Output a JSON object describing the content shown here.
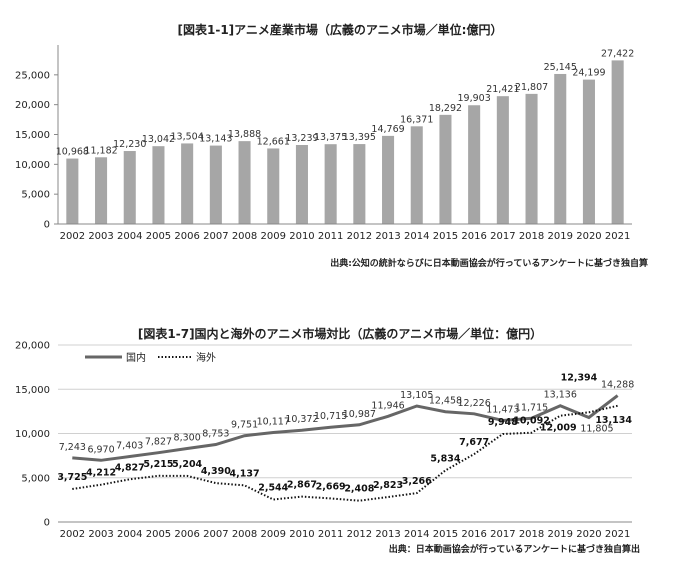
{
  "chart_data": [
    {
      "type": "bar",
      "title": "[図表1-1]アニメ産業市場（広義のアニメ市場／単位:億円）",
      "source": "出典:公知の統計ならびに日本動画協会が行っているアンケートに基づき独自算",
      "categories": [
        "2002",
        "2003",
        "2004",
        "2005",
        "2006",
        "2007",
        "2008",
        "2009",
        "2010",
        "2011",
        "2012",
        "2013",
        "2014",
        "2015",
        "2016",
        "2017",
        "2018",
        "2019",
        "2020",
        "2021"
      ],
      "values": [
        10968,
        11182,
        12230,
        13042,
        13504,
        13143,
        13888,
        12661,
        13239,
        13375,
        13395,
        14769,
        16371,
        18292,
        19903,
        21421,
        21807,
        25145,
        24199,
        27422
      ],
      "labels": [
        "10,968",
        "11,182",
        "12,230",
        "13,042",
        "13,504",
        "13,143",
        "13,888",
        "12,661",
        "13,239",
        "13,375",
        "13,395",
        "14,769",
        "16,371",
        "18,292",
        "19,903",
        "21,421",
        "21,807",
        "25,145",
        "24,199",
        "27,422"
      ],
      "ylim": [
        0,
        30000
      ],
      "yticks": [
        "0",
        "5,000",
        "10,000",
        "15,000",
        "20,000",
        "25,000"
      ],
      "ytick_values": [
        0,
        5000,
        10000,
        15000,
        20000,
        25000
      ],
      "bar_color": "#a6a6a6",
      "xlabel": "",
      "ylabel": "",
      "grid": false
    },
    {
      "type": "line",
      "title": "[図表1-7]国内と海外のアニメ市場対比（広義のアニメ市場／単位：億円）",
      "source": "出典：日本動画協会が行っているアンケートに基づき独自算出",
      "categories": [
        "2002",
        "2003",
        "2004",
        "2005",
        "2006",
        "2007",
        "2008",
        "2009",
        "2010",
        "2011",
        "2012",
        "2013",
        "2014",
        "2015",
        "2016",
        "2017",
        "2018",
        "2019",
        "2020",
        "2021"
      ],
      "series": [
        {
          "name": "国内",
          "values": [
            7243,
            6970,
            7403,
            7827,
            8300,
            8753,
            9751,
            10117,
            10372,
            10715,
            10987,
            11946,
            13105,
            12458,
            12226,
            11473,
            11715,
            13136,
            11805,
            14288
          ],
          "labels": [
            "7,243",
            "6,970",
            "7,403",
            "7,827",
            "8,300",
            "8,753",
            "9,751",
            "10,117",
            "10,372",
            "10,715",
            "10,987",
            "11,946",
            "13,105",
            "12,458",
            "12,226",
            "11,473",
            "11,715",
            "13,136",
            "11,805",
            "14,288"
          ],
          "color": "#666666",
          "style": "solid"
        },
        {
          "name": "海外",
          "values": [
            3725,
            4212,
            4827,
            5215,
            5204,
            4390,
            4137,
            2544,
            2867,
            2669,
            2408,
            2823,
            3266,
            5834,
            7677,
            9948,
            10092,
            12009,
            12394,
            13134
          ],
          "labels": [
            "3,725",
            "4,212",
            "4,827",
            "5,215",
            "5,204",
            "4,390",
            "4,137",
            "2,544",
            "2,867",
            "2,669",
            "2,408",
            "2,823",
            "3,266",
            "5,834",
            "7,677",
            "9,948",
            "10,092",
            "12,009",
            "12,394",
            "13,134"
          ],
          "color": "#111111",
          "style": "dotted"
        }
      ],
      "ylim": [
        0,
        20000
      ],
      "yticks": [
        "0",
        "5,000",
        "10,000",
        "15,000",
        "20,000"
      ],
      "ytick_values": [
        0,
        5000,
        10000,
        15000,
        20000
      ],
      "legend_position": "top-left",
      "xlabel": "",
      "ylabel": "",
      "grid": true
    }
  ]
}
